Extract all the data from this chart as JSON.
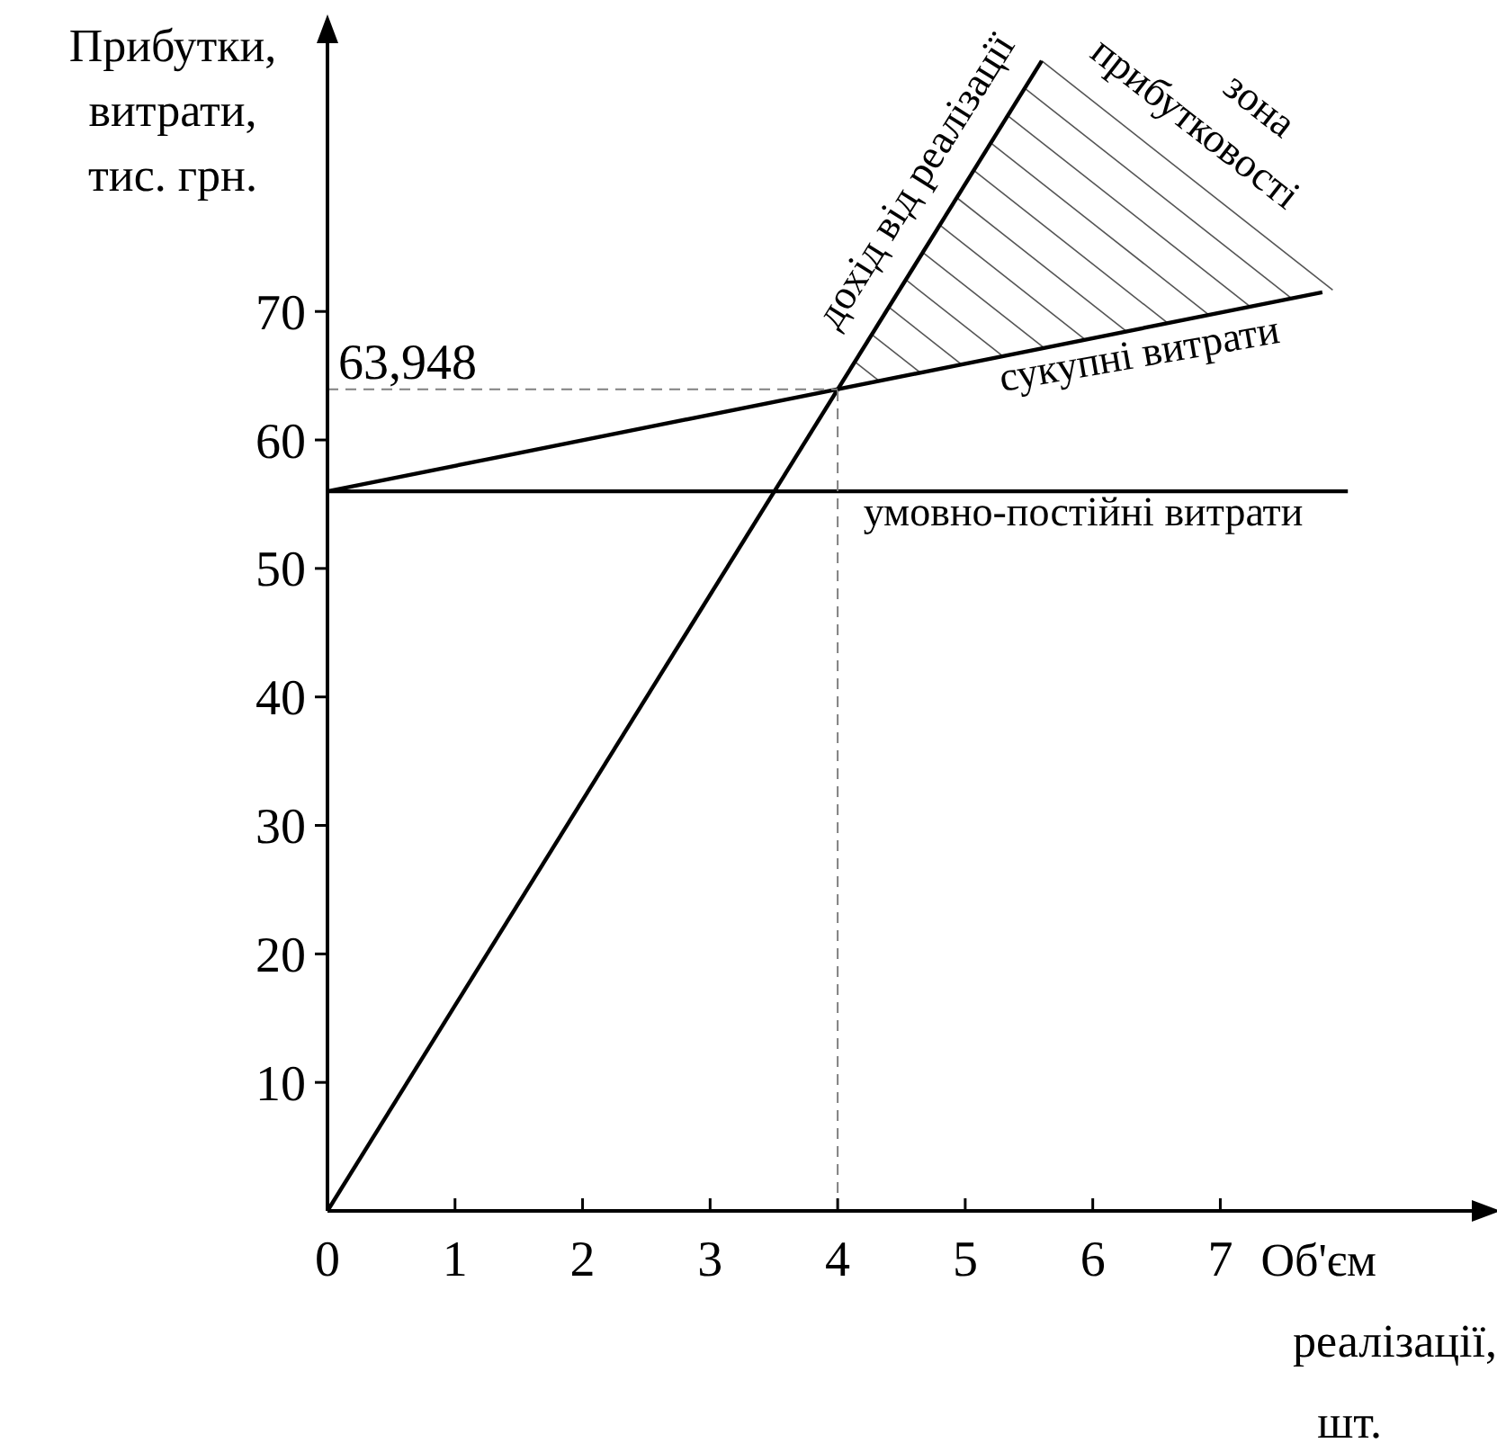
{
  "chart_data": {
    "type": "line",
    "ylabel": "Прибутки,\nвитрати,\nтис. грн.",
    "xlabel": "Об'єм\nреалізації,\nшт.",
    "xlim": [
      0,
      9
    ],
    "ylim": [
      0,
      92
    ],
    "xticks": [
      0,
      1,
      2,
      3,
      4,
      5,
      6,
      7
    ],
    "yticks": [
      10,
      20,
      30,
      40,
      50,
      60,
      70
    ],
    "grid": false,
    "marker": "none",
    "line_style": "solid",
    "series": [
      {
        "name": "дохід від реалізації",
        "color": "#000000",
        "x": [
          0,
          5.6
        ],
        "values": [
          0,
          89.5
        ]
      },
      {
        "name": "сукупні витрати",
        "color": "#000000",
        "x": [
          0,
          7.8
        ],
        "values": [
          56,
          71.5
        ]
      },
      {
        "name": "умовно-постійні витрати",
        "color": "#000000",
        "x": [
          0,
          8
        ],
        "values": [
          56,
          56
        ]
      }
    ],
    "ref_lines": [
      {
        "axis": "x",
        "value": 4,
        "label": null,
        "line_style": "dashed",
        "color": "#808080"
      },
      {
        "axis": "y",
        "value": 63.948,
        "label": "63,948",
        "line_style": "dashed",
        "color": "#808080"
      }
    ],
    "annotations": [
      "зона прибутковості"
    ]
  }
}
